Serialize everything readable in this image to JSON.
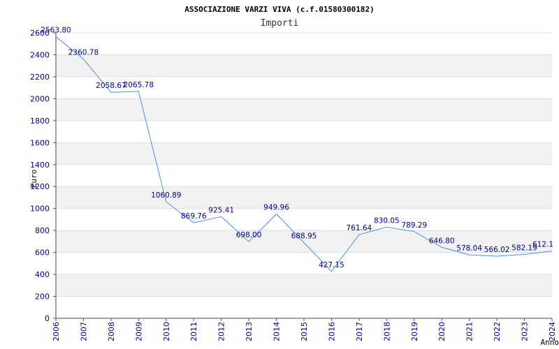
{
  "chart_data": {
    "type": "line",
    "title": "ASSOCIAZIONE VARZI VIVA (c.f.01580300182)",
    "subtitle": "Importi",
    "xlabel": "Anno",
    "ylabel": "Euro",
    "x": [
      2006,
      2007,
      2008,
      2009,
      2010,
      2011,
      2012,
      2013,
      2014,
      2015,
      2016,
      2017,
      2018,
      2019,
      2020,
      2021,
      2022,
      2023,
      2024
    ],
    "values": [
      2563.8,
      2360.78,
      2058.67,
      2065.78,
      1060.89,
      869.76,
      925.41,
      698.0,
      949.96,
      688.95,
      427.15,
      761.64,
      830.05,
      789.29,
      646.8,
      578.04,
      566.02,
      582.19,
      612.1
    ],
    "data_labels": [
      "2563.80",
      "2360.78",
      "2058.67",
      "2065.78",
      "1060.89",
      "869.76",
      "925.41",
      "698.00",
      "949.96",
      "688.95",
      "427.15",
      "761.64",
      "830.05",
      "789.29",
      "646.80",
      "578.04",
      "566.02",
      "582.19",
      "612.1"
    ],
    "ylim": [
      0,
      2600
    ],
    "yticks": [
      0,
      200,
      400,
      600,
      800,
      1000,
      1200,
      1400,
      1600,
      1800,
      2000,
      2200,
      2400,
      2600
    ],
    "grid": true,
    "colors": {
      "line": "#4a90e2",
      "band": "#f2f2f2",
      "gridline": "#dddddd",
      "text": "#00008b"
    }
  }
}
